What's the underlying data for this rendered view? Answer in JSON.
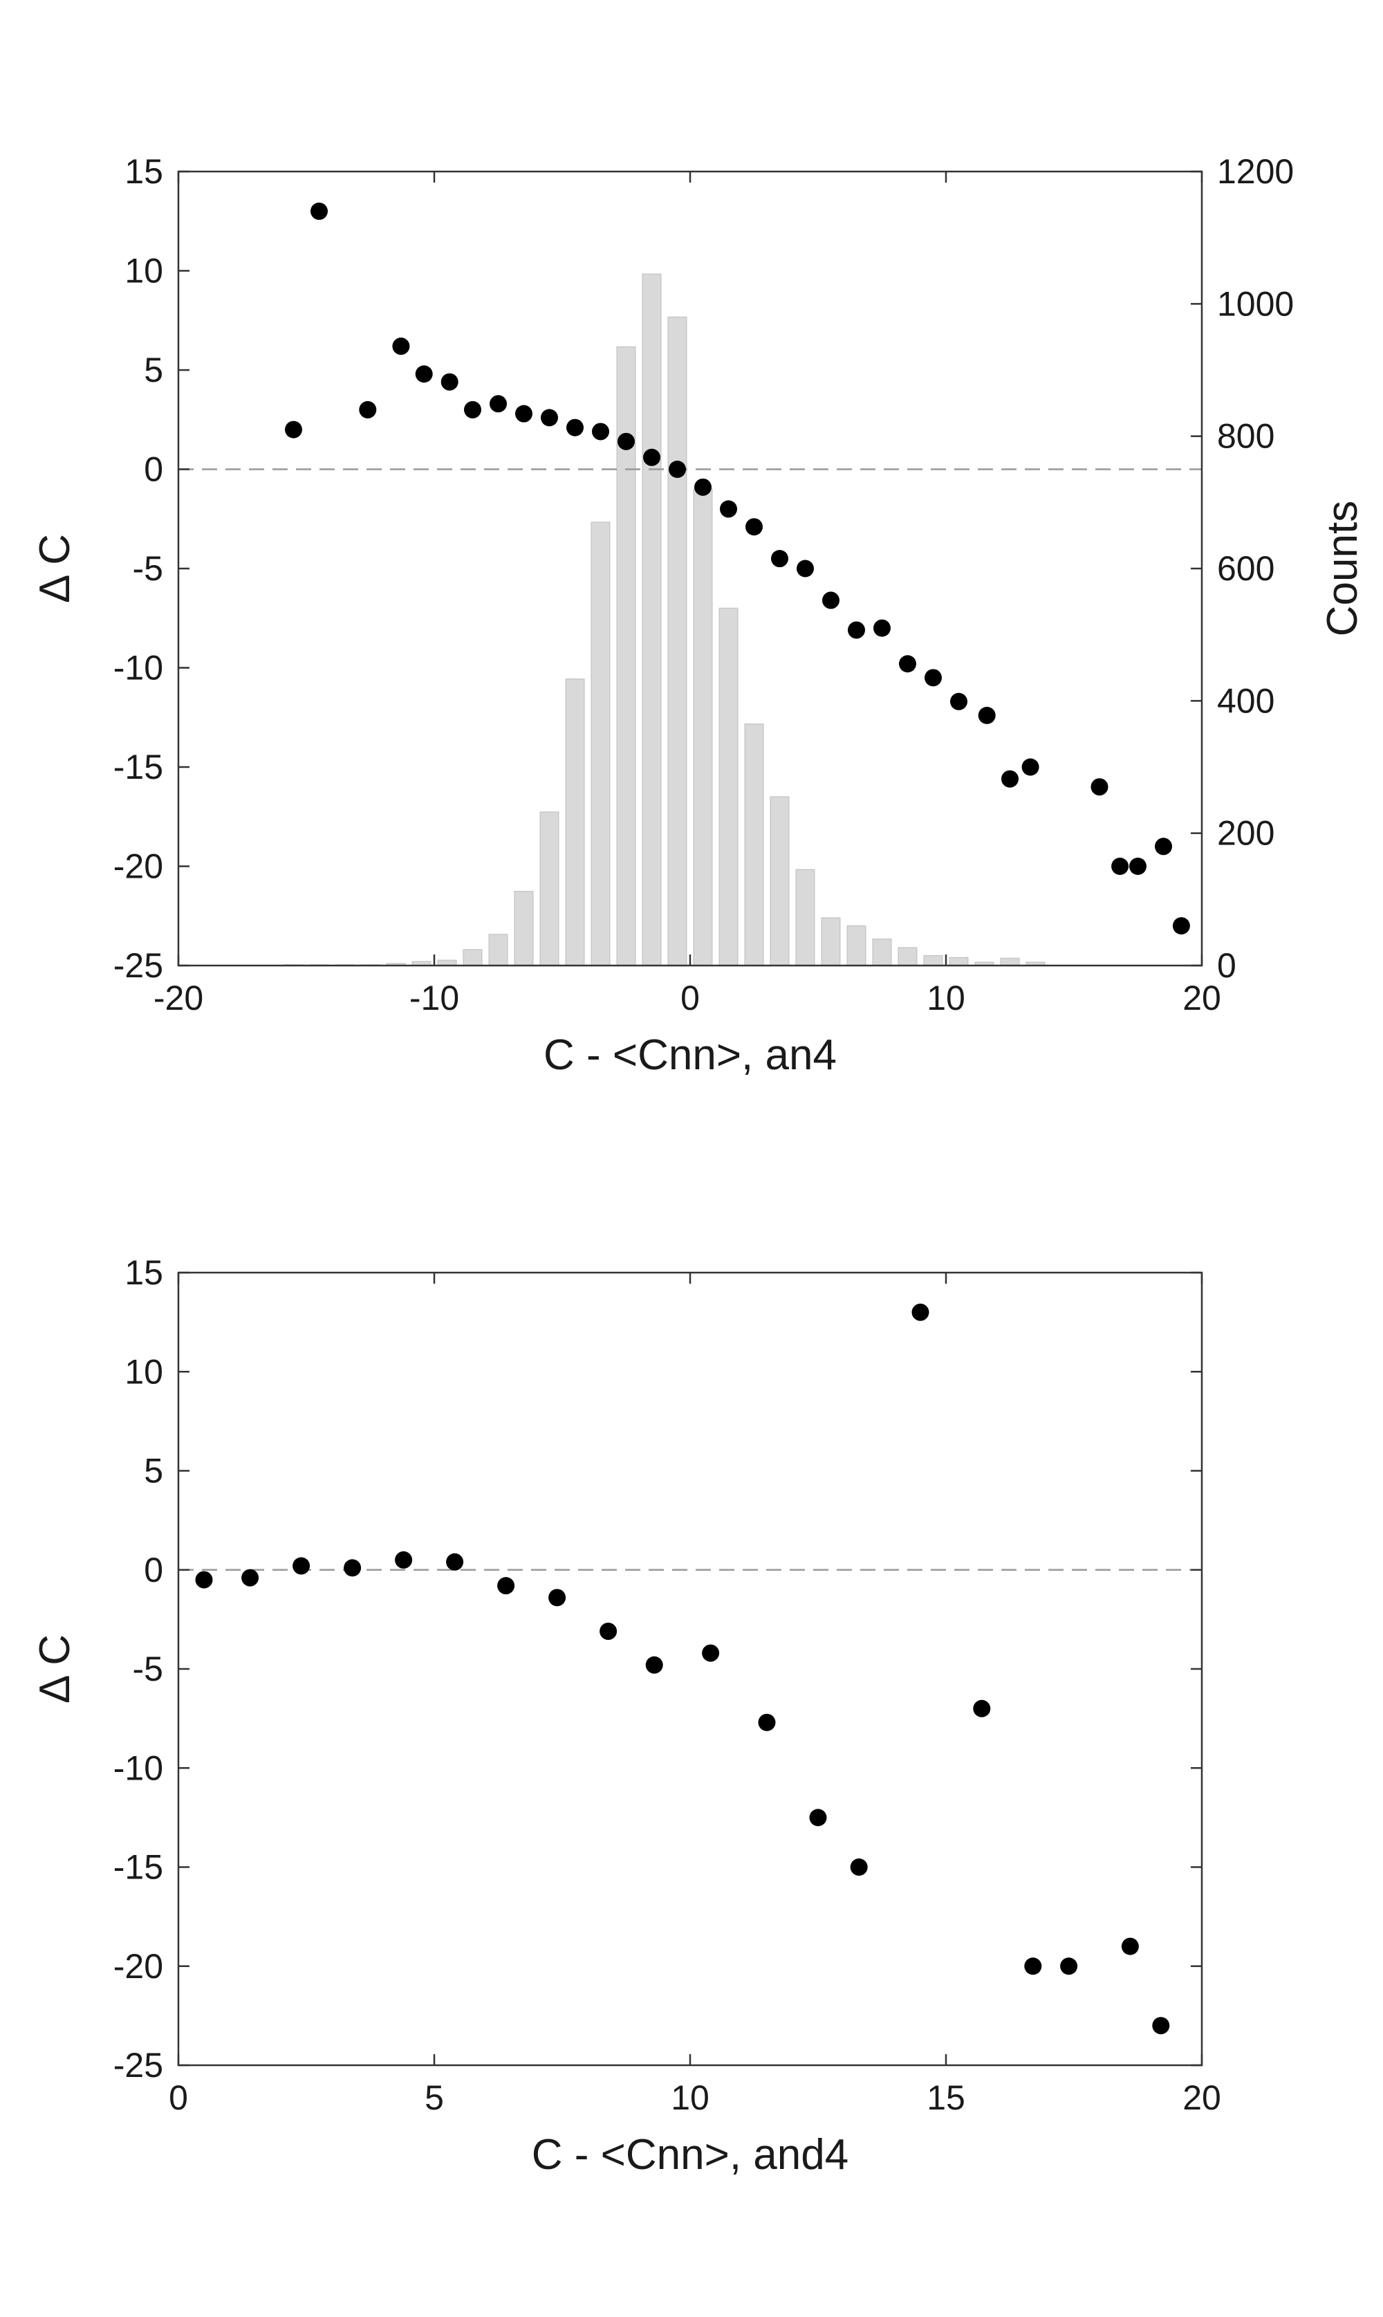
{
  "chart_data": [
    {
      "type": "scatter",
      "xlabel": "C - <Cnn>, an4",
      "ylabel": "Δ C",
      "y2label": "Counts",
      "xlim": [
        -20,
        20
      ],
      "ylim": [
        -25,
        15
      ],
      "y2lim": [
        0,
        1200
      ],
      "xticks": [
        -20,
        -10,
        0,
        10,
        20
      ],
      "yticks": [
        15,
        10,
        5,
        0,
        -5,
        -10,
        -15,
        -20,
        -25
      ],
      "y2ticks": [
        1200,
        1000,
        800,
        600,
        400,
        200,
        0
      ],
      "reference_line_y": 0,
      "grid": false,
      "histogram": {
        "name": "Counts",
        "color": "#d9d9d9",
        "bin_width": 1,
        "x": [
          -15.5,
          -14.5,
          -13.5,
          -12.5,
          -11.5,
          -10.5,
          -9.5,
          -8.5,
          -7.5,
          -6.5,
          -5.5,
          -4.5,
          -3.5,
          -2.5,
          -1.5,
          -0.5,
          0.5,
          1.5,
          2.5,
          3.5,
          4.5,
          5.5,
          6.5,
          7.5,
          8.5,
          9.5,
          10.5,
          11.5,
          12.5,
          13.5
        ],
        "values": [
          1,
          1,
          1,
          1,
          3,
          6,
          8,
          24,
          47,
          112,
          232,
          433,
          670,
          935,
          1045,
          980,
          720,
          540,
          365,
          255,
          145,
          72,
          60,
          40,
          27,
          15,
          12,
          5,
          11,
          5
        ]
      },
      "points": {
        "name": "Δ C",
        "color": "#000000",
        "x": [
          -15.5,
          -14.5,
          -12.6,
          -11.3,
          -10.4,
          -9.4,
          -8.5,
          -7.5,
          -6.5,
          -5.5,
          -4.5,
          -3.5,
          -2.5,
          -1.5,
          -0.5,
          0.5,
          1.5,
          2.5,
          3.5,
          4.5,
          5.5,
          6.5,
          7.5,
          8.5,
          9.5,
          10.5,
          11.6,
          12.5,
          13.3,
          16.0,
          16.8,
          17.5,
          18.5,
          19.2
        ],
        "y": [
          2.0,
          13.0,
          3.0,
          6.2,
          4.8,
          4.4,
          3.0,
          3.3,
          2.8,
          2.6,
          2.1,
          1.9,
          1.4,
          0.6,
          0.0,
          -0.9,
          -2.0,
          -2.9,
          -4.5,
          -5.0,
          -6.6,
          -8.1,
          -8.0,
          -9.8,
          -10.5,
          -11.7,
          -12.4,
          -15.6,
          -15.0,
          -16.0,
          -20.0,
          -20.0,
          -19.0,
          -23.0
        ]
      }
    },
    {
      "type": "scatter",
      "xlabel": "C - <Cnn>, and4",
      "ylabel": "Δ C",
      "xlim": [
        0,
        20
      ],
      "ylim": [
        -25,
        15
      ],
      "xticks": [
        0,
        5,
        10,
        15,
        20
      ],
      "yticks": [
        15,
        10,
        5,
        0,
        -5,
        -10,
        -15,
        -20,
        -25
      ],
      "reference_line_y": 0,
      "grid": false,
      "points": {
        "name": "Δ C",
        "color": "#000000",
        "x": [
          0.5,
          1.4,
          2.4,
          3.4,
          4.4,
          5.4,
          6.4,
          7.4,
          8.4,
          9.3,
          10.4,
          11.5,
          12.5,
          13.3,
          14.5,
          15.7,
          16.7,
          17.4,
          18.6,
          19.2
        ],
        "y": [
          -0.5,
          -0.4,
          0.2,
          0.1,
          0.5,
          0.4,
          -0.8,
          -1.4,
          -3.1,
          -4.8,
          -4.2,
          -7.7,
          -12.5,
          -15.0,
          13.0,
          -7.0,
          -20.0,
          -20.0,
          -19.0,
          -23.0
        ]
      }
    }
  ]
}
